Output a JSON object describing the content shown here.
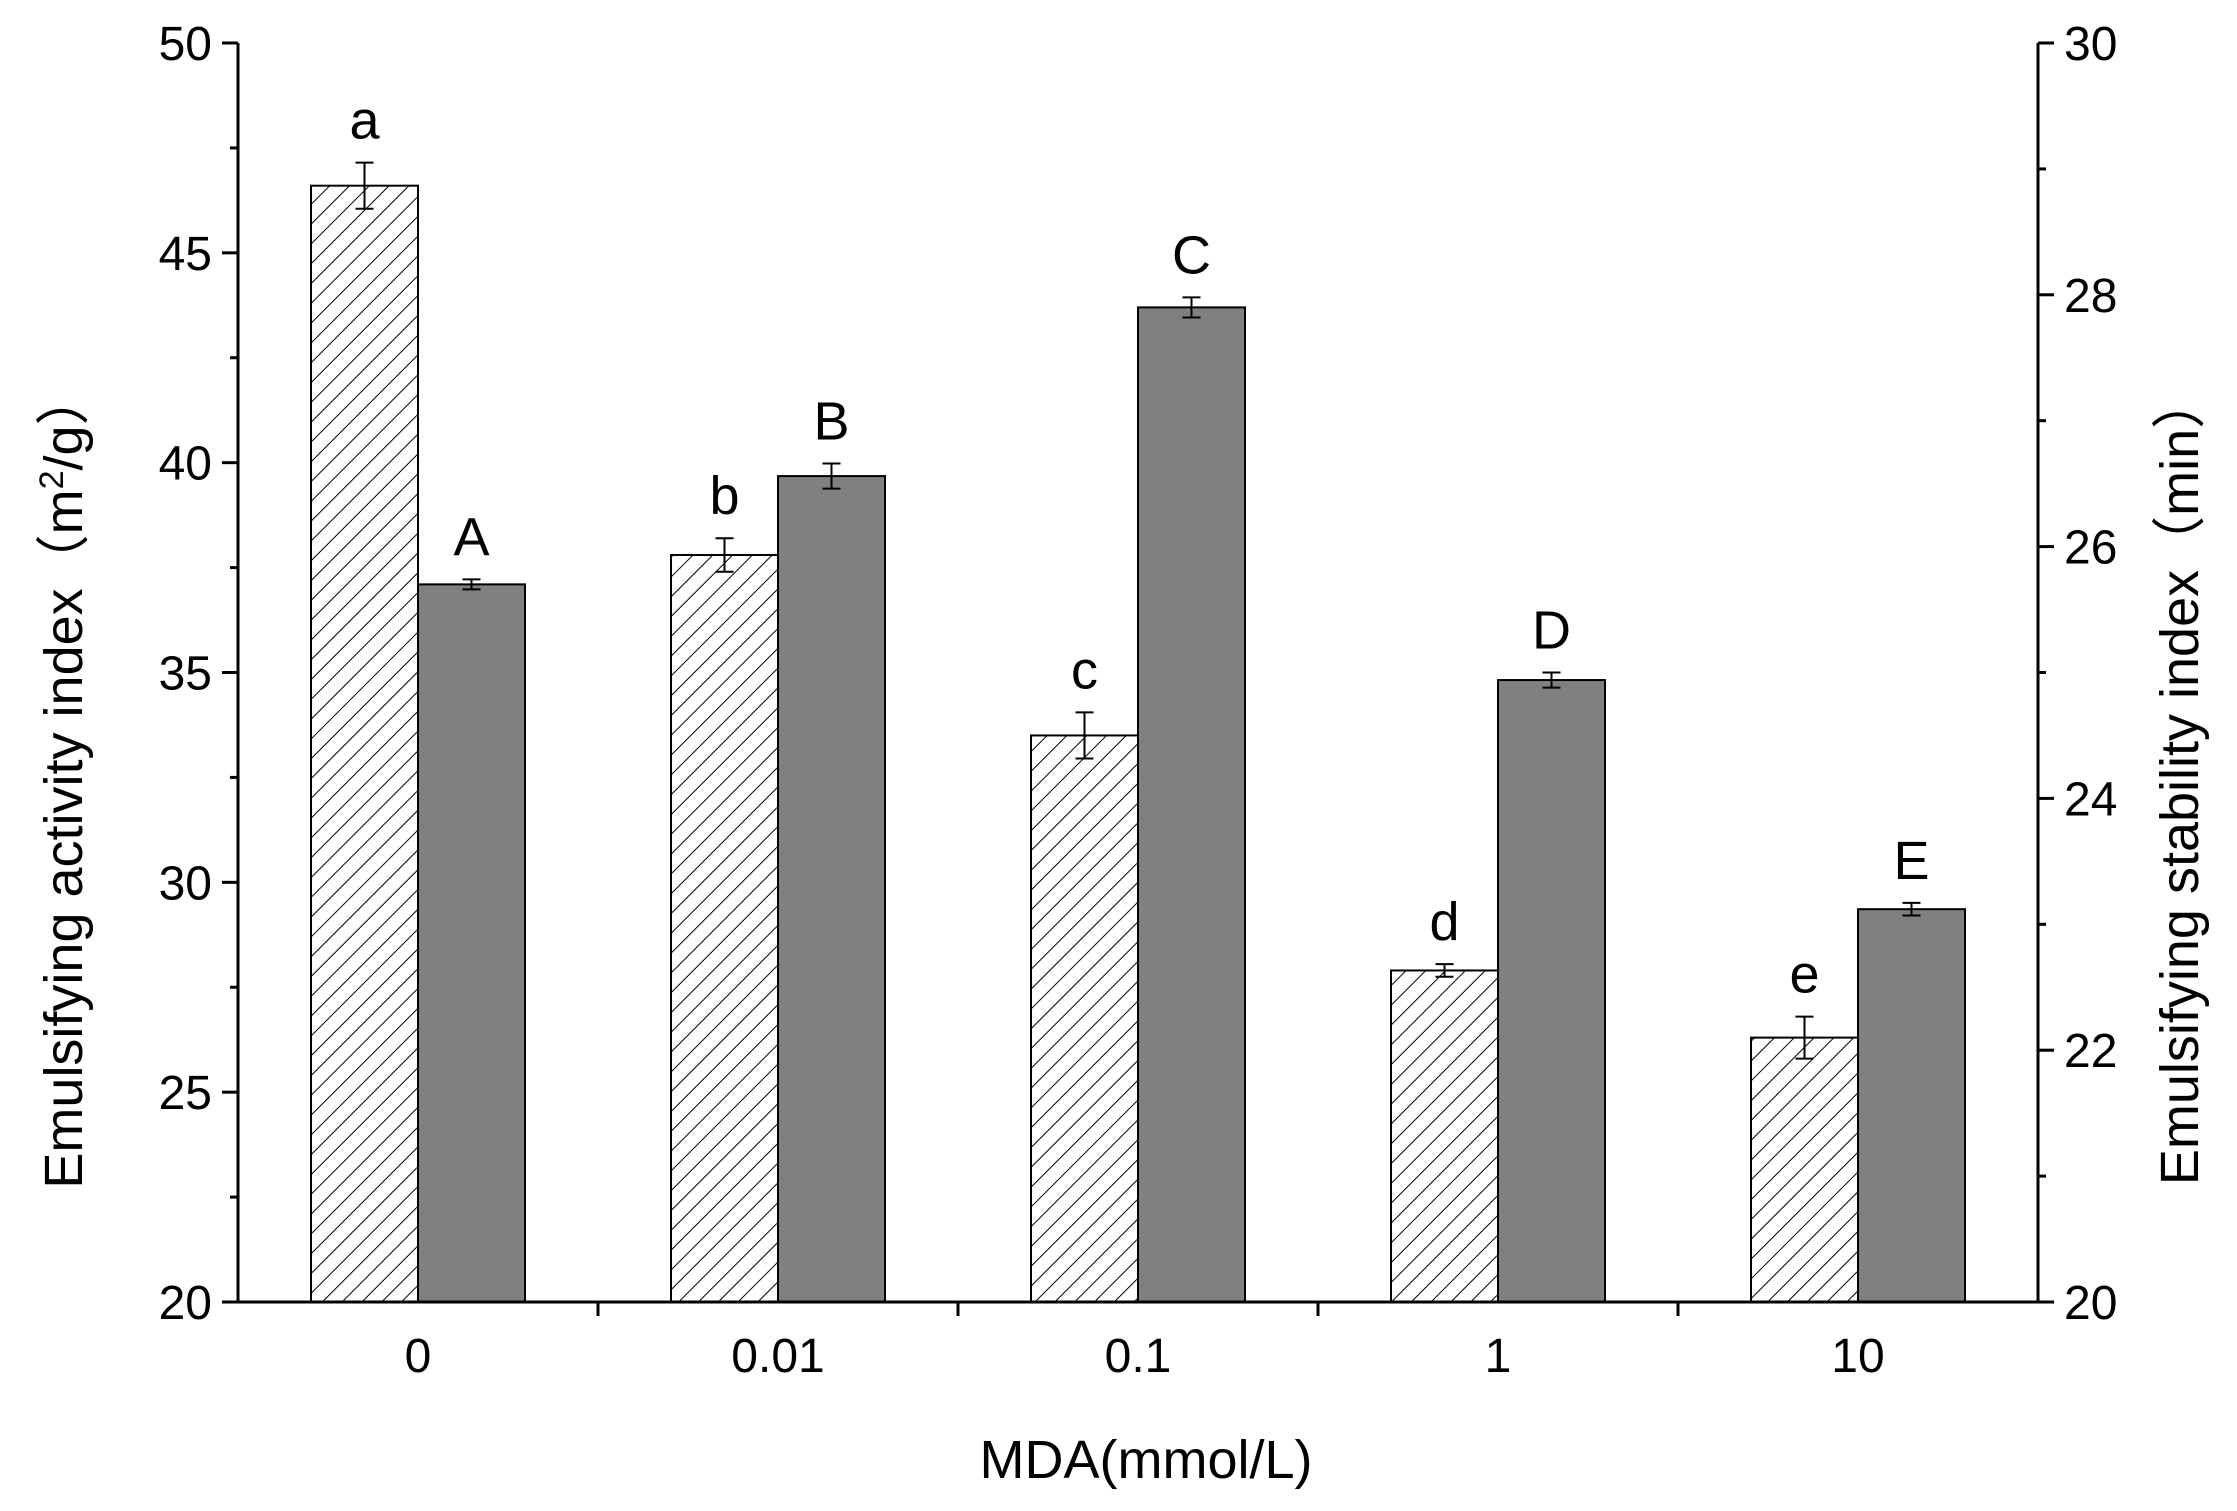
{
  "chart_data": {
    "type": "bar",
    "xlabel": "MDA(mmol/L)",
    "categories": [
      "0",
      "0.01",
      "0.1",
      "1",
      "10"
    ],
    "series": [
      {
        "name": "Emulsifying activity index",
        "axis": "left",
        "pattern": "hatched",
        "values": [
          46.6,
          37.8,
          33.5,
          27.9,
          26.3
        ],
        "errors": [
          0.55,
          0.4,
          0.55,
          0.15,
          0.5
        ],
        "letters": [
          "a",
          "b",
          "c",
          "d",
          "e"
        ]
      },
      {
        "name": "Emulsifying stability index",
        "axis": "right",
        "pattern": "solid",
        "color": "#808080",
        "values": [
          25.7,
          26.56,
          27.9,
          24.94,
          23.12
        ],
        "errors": [
          0.04,
          0.1,
          0.08,
          0.06,
          0.05
        ],
        "letters": [
          "A",
          "B",
          "C",
          "D",
          "E"
        ]
      }
    ],
    "y_left": {
      "label_main": "Emulsifying activity index（m",
      "label_sup": "2",
      "label_end": "/g）",
      "ylim": [
        20,
        50
      ],
      "ticks": [
        "20",
        "25",
        "30",
        "35",
        "40",
        "45",
        "50"
      ]
    },
    "y_right": {
      "label": "Emulsifying stability index（min）",
      "ylim": [
        20,
        30
      ],
      "ticks": [
        "20",
        "22",
        "24",
        "26",
        "28",
        "30"
      ]
    }
  }
}
